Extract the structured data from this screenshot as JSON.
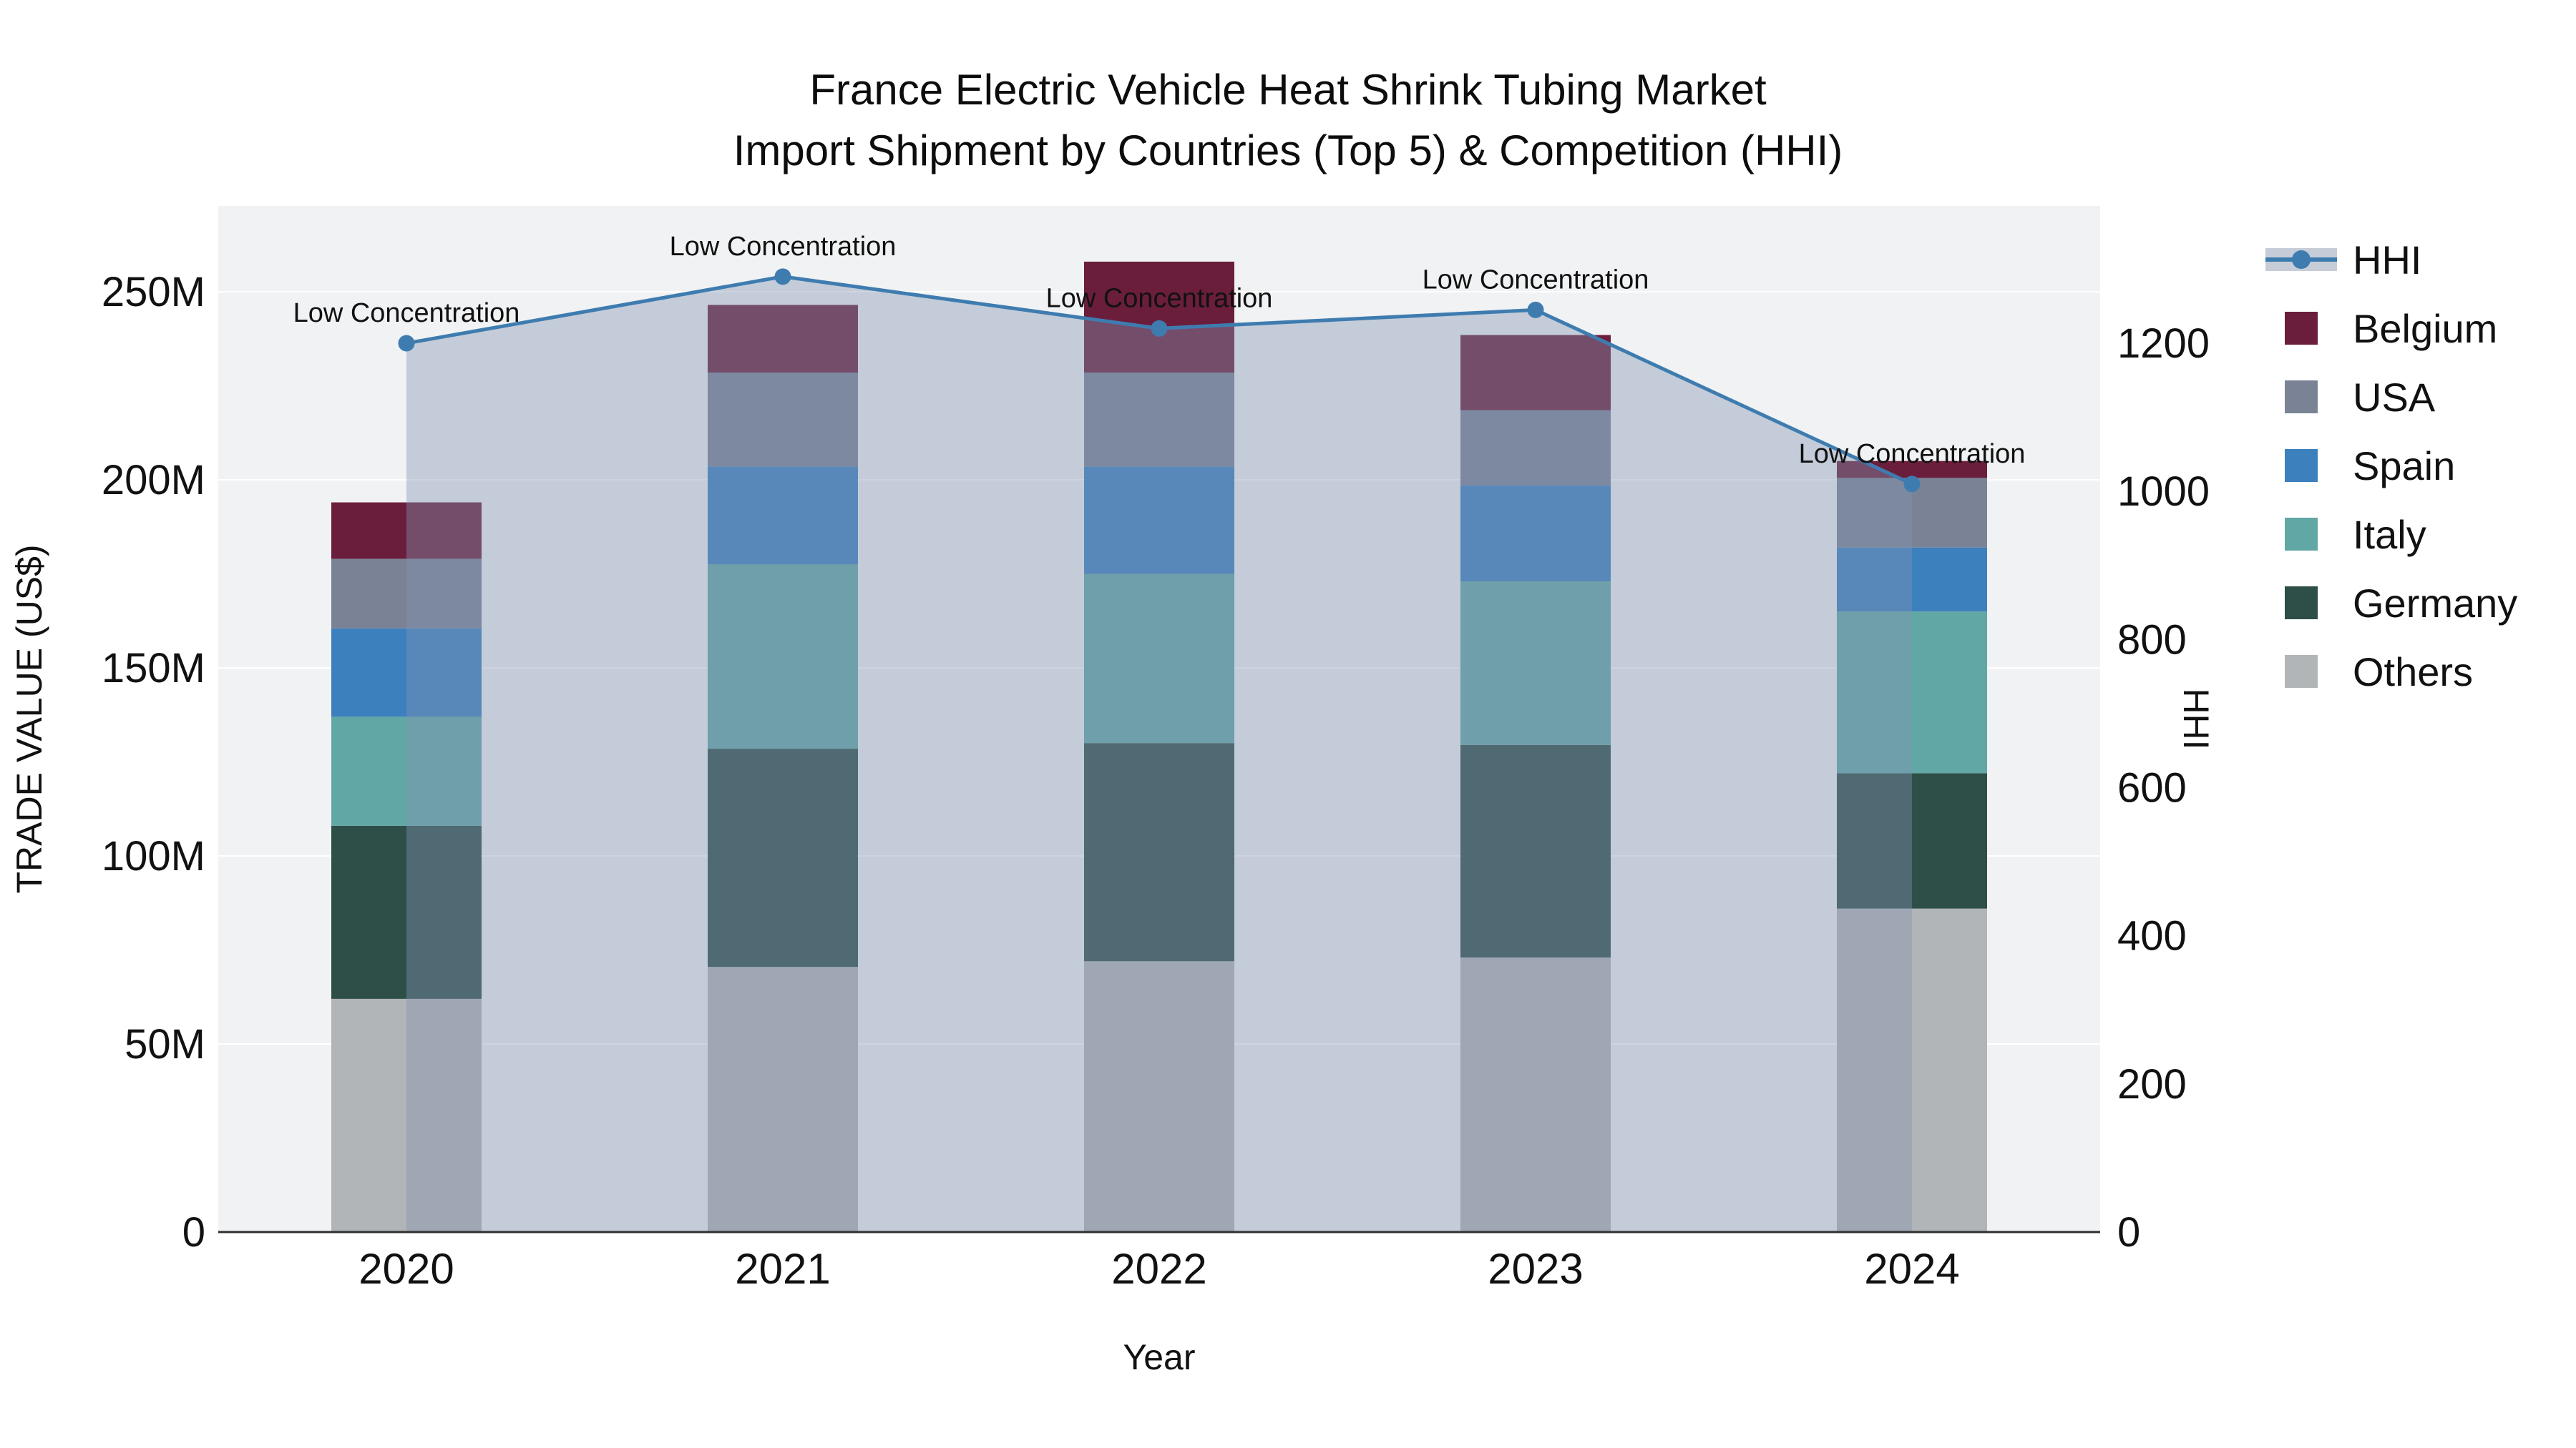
{
  "chart_data": {
    "type": "stacked-bar+line",
    "title": {
      "line1": "France Electric Vehicle Heat Shrink Tubing Market",
      "line2": "Import Shipment by Countries (Top 5) & Competition (HHI)"
    },
    "x": {
      "label": "Year",
      "categories": [
        "2020",
        "2021",
        "2022",
        "2023",
        "2024"
      ]
    },
    "unit": "million US$",
    "bar_series": [
      {
        "name": "Others",
        "color": "#B2B5B7",
        "values": [
          62,
          70.5,
          72,
          73,
          86
        ]
      },
      {
        "name": "Germany",
        "color": "#2D4F48",
        "values": [
          46,
          58,
          58,
          56.5,
          36
        ]
      },
      {
        "name": "Italy",
        "color": "#61A7A5",
        "values": [
          29,
          49,
          45,
          43.5,
          43
        ]
      },
      {
        "name": "Spain",
        "color": "#3C80BE",
        "values": [
          23.5,
          26,
          28.5,
          25.5,
          17
        ]
      },
      {
        "name": "USA",
        "color": "#7A8396",
        "values": [
          18.5,
          25,
          25,
          20,
          18.5
        ]
      },
      {
        "name": "Belgium",
        "color": "#6B1E3C",
        "values": [
          15,
          18,
          29.5,
          20,
          4.5
        ]
      }
    ],
    "line_series": {
      "name": "HHI",
      "color": "#3E7CB0",
      "area_fill": "rgba(130,148,178,0.40)",
      "values": [
        1200,
        1290,
        1220,
        1245,
        1010
      ]
    },
    "annotations": [
      "Low Concentration",
      "Low Concentration",
      "Low Concentration",
      "Low Concentration",
      "Low Concentration"
    ],
    "y_left": {
      "label": "TRADE VALUE (US$)",
      "tick_labels": [
        "0",
        "50M",
        "100M",
        "150M",
        "200M",
        "250M"
      ],
      "tick_values": [
        0,
        50,
        100,
        150,
        200,
        250
      ]
    },
    "y_right": {
      "label": "HHI",
      "tick_labels": [
        "0",
        "200",
        "400",
        "600",
        "800",
        "1000",
        "1200"
      ],
      "tick_values": [
        0,
        200,
        400,
        600,
        800,
        1000,
        1200
      ]
    },
    "legend": [
      {
        "name": "HHI",
        "type": "line",
        "color": "#3E7CB0",
        "band": "#C7CDD8"
      },
      {
        "name": "Belgium",
        "type": "swatch",
        "color": "#6B1E3C"
      },
      {
        "name": "USA",
        "type": "swatch",
        "color": "#7A8396"
      },
      {
        "name": "Spain",
        "type": "swatch",
        "color": "#3C80BE"
      },
      {
        "name": "Italy",
        "type": "swatch",
        "color": "#61A7A5"
      },
      {
        "name": "Germany",
        "type": "swatch",
        "color": "#2D4F48"
      },
      {
        "name": "Others",
        "type": "swatch",
        "color": "#B2B5B7"
      }
    ],
    "colors": {
      "plot_bg": "#F1F2F3",
      "paper": "#FFFFFF",
      "grid": "#FFFFFF",
      "axis_line": "#2F2F2F",
      "text": "#111111"
    },
    "legend_position": "right",
    "grid": "horizontal"
  }
}
